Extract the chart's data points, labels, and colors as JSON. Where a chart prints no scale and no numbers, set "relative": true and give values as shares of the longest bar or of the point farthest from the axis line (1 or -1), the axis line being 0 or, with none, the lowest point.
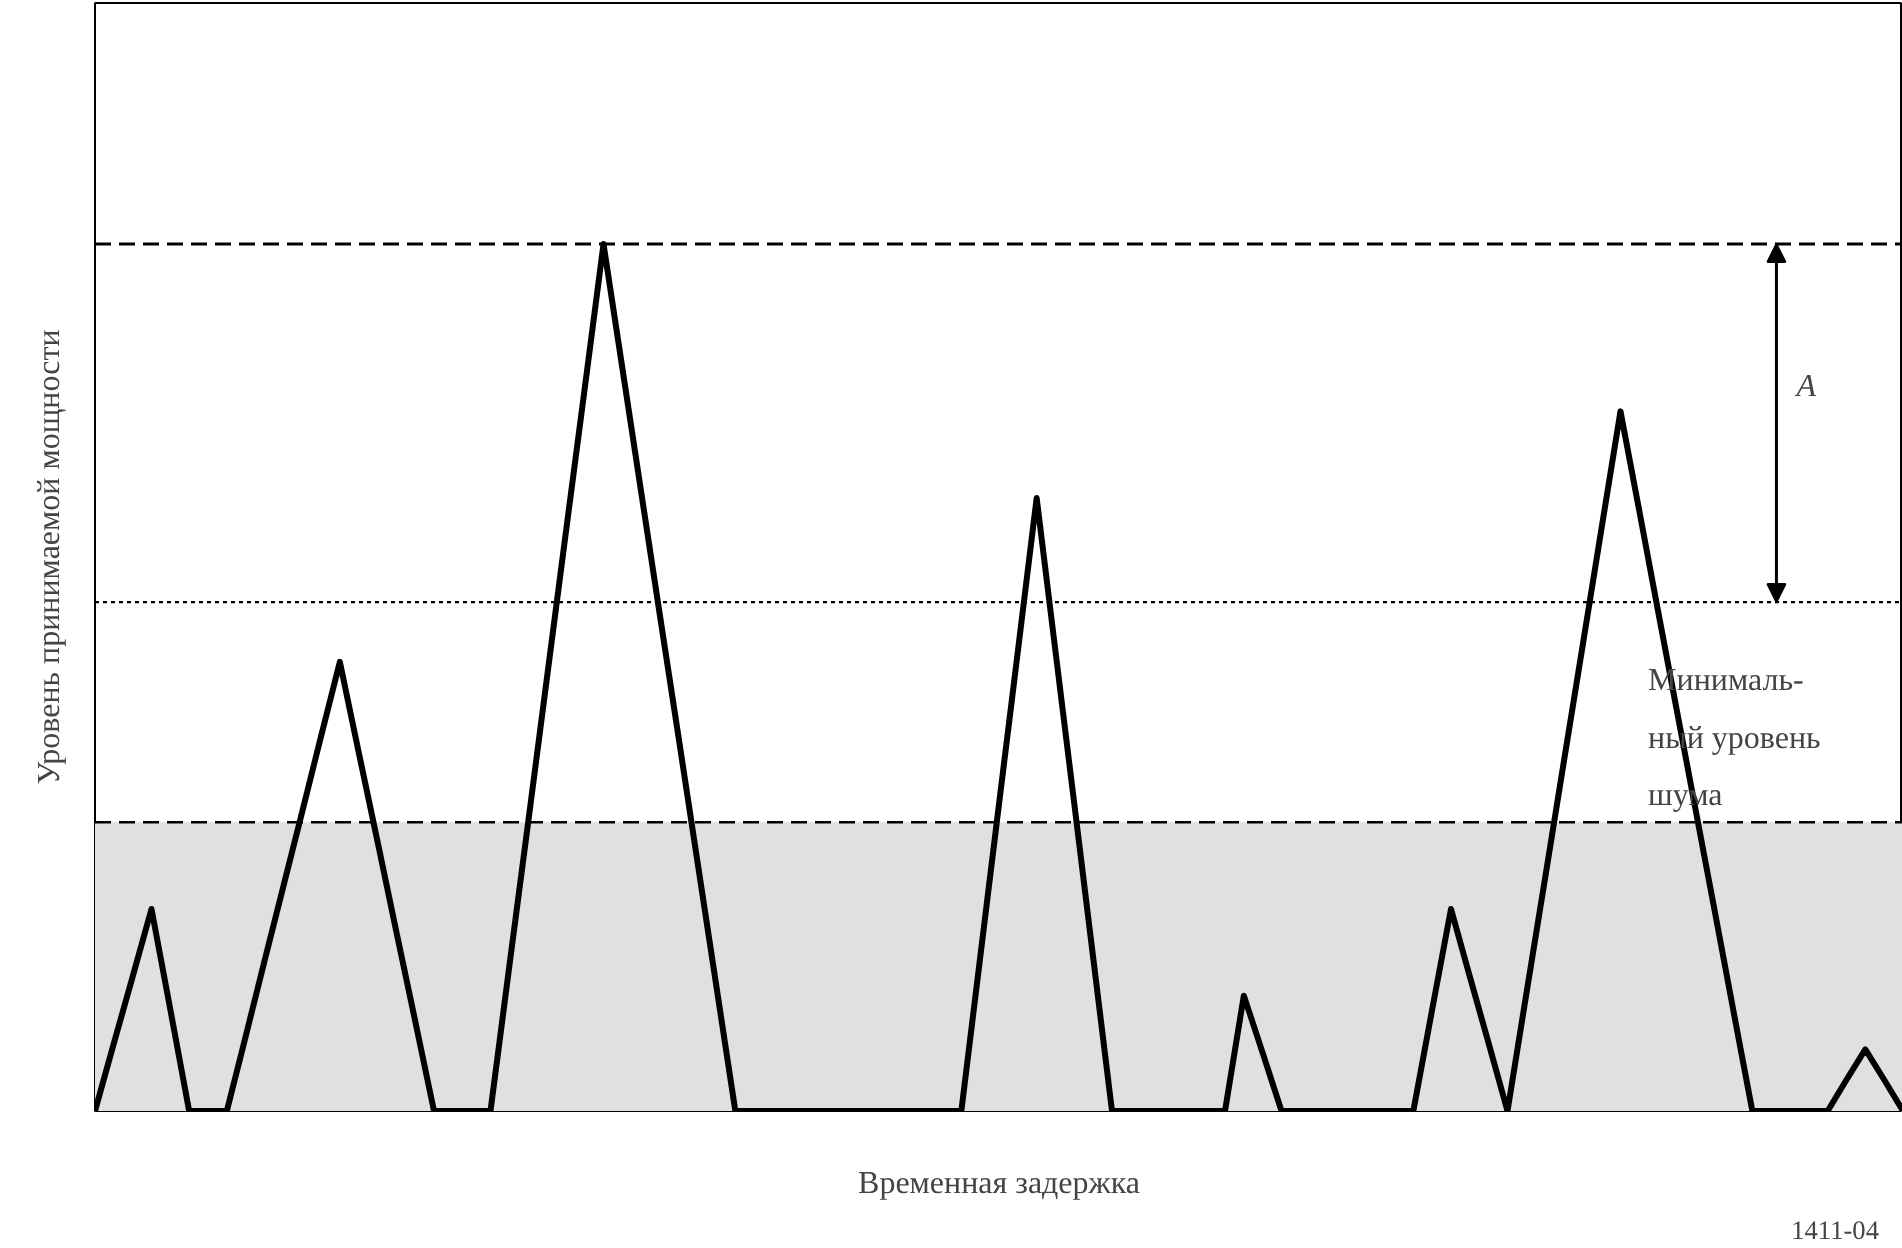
{
  "chart_data": {
    "type": "line",
    "relative": true,
    "xlabel": "Временная задержка",
    "ylabel": "Уровень принимаемой мощности",
    "tick_labels": false,
    "line_style": "solid",
    "categories": [
      null,
      null,
      null,
      null,
      null,
      null,
      null,
      null,
      null,
      null,
      null,
      null,
      null,
      null,
      null,
      null,
      null,
      null,
      null,
      null,
      null,
      null,
      null,
      null,
      null,
      null,
      null,
      null,
      null,
      null,
      null,
      null,
      null,
      null,
      null,
      null,
      null,
      null,
      null,
      null,
      null,
      null,
      null,
      null,
      null,
      null,
      null,
      null,
      null,
      null,
      null,
      null,
      null,
      null,
      null,
      null,
      null,
      null,
      null,
      null,
      null,
      null,
      null,
      null,
      null,
      null,
      null,
      null,
      null,
      null,
      null,
      null,
      null,
      null,
      null,
      null,
      null,
      null,
      null,
      null,
      null,
      null,
      null,
      null,
      null,
      null,
      null,
      null,
      null,
      null,
      null,
      null,
      null,
      null,
      null,
      null,
      null
    ],
    "series": [
      {
        "color": "#000000",
        "values": [
          0,
          0.078,
          0.155,
          0.233,
          0.117,
          0,
          0,
          0,
          0.086,
          0.173,
          0.259,
          0.345,
          0.432,
          0.518,
          0.414,
          0.311,
          0.207,
          0.104,
          0,
          0,
          0,
          0,
          0.167,
          0.333,
          0.5,
          0.667,
          0.833,
          1,
          0.857,
          0.714,
          0.571,
          0.429,
          0.286,
          0.143,
          0,
          0,
          0,
          0,
          0,
          0,
          0,
          0,
          0,
          0,
          0,
          0,
          0,
          0.177,
          0.354,
          0.53,
          0.707,
          0.53,
          0.354,
          0.177,
          0,
          0,
          0,
          0,
          0,
          0,
          0,
          0.133,
          0.067,
          0,
          0,
          0,
          0,
          0,
          0,
          0,
          0,
          0.117,
          0.233,
          0.155,
          0.078,
          0,
          0.135,
          0.269,
          0.404,
          0.538,
          0.673,
          0.807,
          0.692,
          0.576,
          0.461,
          0.346,
          0.231,
          0.115,
          0,
          0,
          0,
          0,
          0,
          0.036,
          0.071,
          0.036,
          0
        ]
      }
    ],
    "bands": [
      {
        "axis": "y",
        "from": 0,
        "to": 0.333,
        "color": "#e0e0e0"
      }
    ],
    "ref_lines": [
      {
        "axis": "y",
        "value": 1,
        "line_style": "dashed",
        "color": "#000000"
      },
      {
        "axis": "y",
        "value": 0.587,
        "line_style": "dotted",
        "color": "#000000"
      },
      {
        "axis": "y",
        "value": 0.333,
        "line_style": "dashed",
        "color": "#000000",
        "label": "Минималь-\nный уровень\nшума"
      }
    ],
    "annotations": [
      "A",
      "1411-04"
    ]
  }
}
